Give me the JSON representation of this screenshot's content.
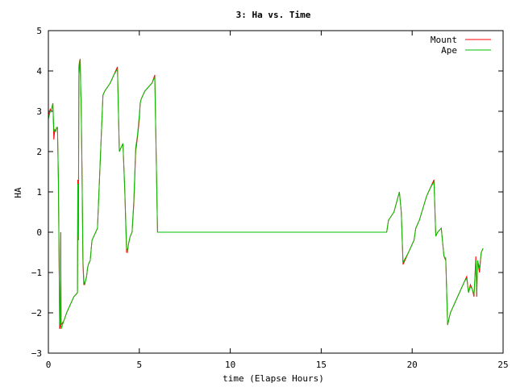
{
  "chart_data": {
    "type": "line",
    "title": "3: Ha vs. Time",
    "xlabel": "time (Elapse Hours)",
    "ylabel": "HA",
    "xlim": [
      0,
      25
    ],
    "ylim": [
      -3,
      5
    ],
    "xticks": [
      0,
      5,
      10,
      15,
      20,
      25
    ],
    "yticks": [
      -3,
      -2,
      -1,
      0,
      1,
      2,
      3,
      4,
      5
    ],
    "grid": false,
    "legend_position": "top-right",
    "series": [
      {
        "name": "Mount",
        "color": "#ff0000",
        "x": [
          0,
          0.1,
          0.15,
          0.2,
          0.25,
          0.3,
          0.35,
          0.4,
          0.45,
          0.5,
          0.55,
          0.6,
          0.62,
          0.65,
          0.68,
          0.7,
          0.85,
          1.0,
          1.2,
          1.4,
          1.6,
          1.62,
          1.65,
          1.68,
          1.7,
          1.72,
          1.75,
          1.78,
          1.8,
          1.85,
          1.9,
          1.95,
          2.0,
          2.02,
          2.05,
          2.1,
          2.15,
          2.2,
          2.3,
          2.4,
          2.5,
          2.6,
          2.7,
          3.0,
          3.1,
          3.4,
          3.6,
          3.8,
          3.9,
          4.0,
          4.05,
          4.1,
          4.2,
          4.3,
          4.35,
          4.4,
          4.45,
          4.5,
          4.6,
          4.7,
          4.8,
          4.9,
          5.0,
          5.05,
          5.1,
          5.2,
          5.3,
          5.5,
          5.7,
          5.85,
          6.0,
          18.6,
          18.7,
          19.0,
          19.3,
          19.4,
          19.5,
          19.8,
          20.1,
          20.2,
          20.4,
          20.6,
          20.8,
          21.0,
          21.2,
          21.3,
          21.4,
          21.6,
          21.75,
          21.85,
          21.95,
          22.0,
          22.1,
          22.3,
          22.5,
          22.7,
          22.9,
          23.0,
          23.1,
          23.2,
          23.3,
          23.4,
          23.5,
          23.55,
          23.6,
          23.7,
          23.8,
          23.9
        ],
        "y": [
          2.9,
          3.05,
          3.0,
          3.1,
          3.2,
          2.3,
          2.55,
          2.5,
          2.6,
          2.6,
          1.3,
          -1.2,
          -2.4,
          -2.35,
          0.0,
          -2.3,
          -2.2,
          -2.0,
          -1.8,
          -1.6,
          -1.5,
          1.3,
          -0.2,
          4.1,
          4.2,
          4.25,
          4.3,
          3.4,
          3.3,
          1.6,
          -0.8,
          -1.3,
          -1.3,
          -1.25,
          -1.2,
          -1.1,
          -0.9,
          -0.8,
          -0.7,
          -0.2,
          -0.1,
          0.0,
          0.1,
          3.4,
          3.5,
          3.7,
          3.9,
          4.1,
          2.0,
          2.1,
          2.15,
          2.2,
          1.0,
          -0.5,
          -0.5,
          -0.3,
          -0.2,
          -0.1,
          0.0,
          0.7,
          2.0,
          2.35,
          2.8,
          3.2,
          3.3,
          3.4,
          3.5,
          3.6,
          3.7,
          3.9,
          0.0,
          0.0,
          0.3,
          0.5,
          1.0,
          0.5,
          -0.8,
          -0.5,
          -0.2,
          0.1,
          0.3,
          0.6,
          0.9,
          1.1,
          1.3,
          -0.1,
          0.0,
          0.1,
          -0.6,
          -0.7,
          -2.3,
          -2.2,
          -2.0,
          -1.8,
          -1.6,
          -1.4,
          -1.2,
          -1.1,
          -1.5,
          -1.3,
          -1.4,
          -1.6,
          -0.6,
          -1.6,
          -0.7,
          -1.0,
          -0.5,
          -0.4
        ]
      },
      {
        "name": "Ape",
        "color": "#00c000",
        "x": [
          0,
          0.1,
          0.15,
          0.2,
          0.25,
          0.3,
          0.35,
          0.4,
          0.45,
          0.5,
          0.55,
          0.6,
          0.62,
          0.65,
          0.68,
          0.7,
          0.85,
          1.0,
          1.2,
          1.4,
          1.6,
          1.62,
          1.65,
          1.68,
          1.7,
          1.72,
          1.75,
          1.78,
          1.8,
          1.85,
          1.9,
          1.95,
          2.0,
          2.02,
          2.05,
          2.1,
          2.15,
          2.2,
          2.3,
          2.4,
          2.5,
          2.6,
          2.7,
          3.0,
          3.1,
          3.4,
          3.6,
          3.8,
          3.9,
          4.0,
          4.05,
          4.1,
          4.2,
          4.3,
          4.35,
          4.4,
          4.45,
          4.5,
          4.6,
          4.7,
          4.8,
          4.9,
          5.0,
          5.05,
          5.1,
          5.2,
          5.3,
          5.5,
          5.7,
          5.85,
          6.0,
          18.6,
          18.7,
          19.0,
          19.3,
          19.4,
          19.5,
          19.8,
          20.1,
          20.2,
          20.4,
          20.6,
          20.8,
          21.0,
          21.2,
          21.3,
          21.4,
          21.6,
          21.75,
          21.85,
          21.95,
          22.0,
          22.1,
          22.3,
          22.5,
          22.7,
          22.9,
          23.0,
          23.1,
          23.2,
          23.3,
          23.4,
          23.5,
          23.55,
          23.6,
          23.7,
          23.8,
          23.9
        ],
        "y": [
          2.8,
          3.0,
          3.0,
          3.1,
          3.2,
          2.5,
          2.55,
          2.5,
          2.6,
          2.6,
          1.4,
          -1.1,
          -2.2,
          -2.3,
          0.0,
          -2.4,
          -2.2,
          -2.0,
          -1.8,
          -1.6,
          -1.5,
          1.2,
          -0.1,
          3.9,
          4.0,
          4.2,
          4.3,
          3.5,
          3.3,
          1.5,
          -0.7,
          -1.2,
          -1.3,
          -1.25,
          -1.2,
          -1.1,
          -0.9,
          -0.8,
          -0.7,
          -0.2,
          -0.1,
          0.0,
          0.1,
          3.4,
          3.5,
          3.7,
          3.9,
          4.05,
          2.0,
          2.1,
          2.15,
          2.2,
          1.05,
          -0.4,
          -0.45,
          -0.3,
          -0.2,
          -0.1,
          0.0,
          0.8,
          2.1,
          2.4,
          2.9,
          3.2,
          3.3,
          3.4,
          3.5,
          3.6,
          3.7,
          3.85,
          0.0,
          0.0,
          0.3,
          0.5,
          1.0,
          0.5,
          -0.75,
          -0.5,
          -0.2,
          0.1,
          0.3,
          0.6,
          0.9,
          1.1,
          1.25,
          -0.1,
          0.0,
          0.1,
          -0.6,
          -0.65,
          -2.3,
          -2.2,
          -2.0,
          -1.8,
          -1.6,
          -1.4,
          -1.2,
          -1.15,
          -1.5,
          -1.35,
          -1.4,
          -1.55,
          -0.7,
          -1.5,
          -0.7,
          -0.9,
          -0.5,
          -0.4
        ]
      }
    ]
  }
}
